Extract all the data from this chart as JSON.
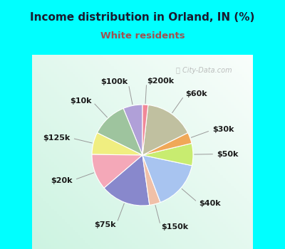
{
  "title": "Income distribution in Orland, IN (%)",
  "subtitle": "White residents",
  "title_color": "#1a1a2e",
  "subtitle_color": "#a05050",
  "background_color": "#00FFFF",
  "labels": [
    "$100k",
    "$10k",
    "$125k",
    "$20k",
    "$75k",
    "$150k",
    "$40k",
    "$50k",
    "$30k",
    "$60k",
    "$200k"
  ],
  "sizes": [
    7,
    13,
    8,
    13,
    18,
    4,
    18,
    8,
    4,
    18,
    2
  ],
  "colors": [
    "#b0a0d8",
    "#9ec49e",
    "#f0ee80",
    "#f4a8b8",
    "#8888cc",
    "#f0c0a8",
    "#a8c4f0",
    "#c8ec70",
    "#f0a858",
    "#c0c0a0",
    "#f08898"
  ],
  "startangle": 90,
  "label_fontsize": 8,
  "watermark": "City-Data.com"
}
